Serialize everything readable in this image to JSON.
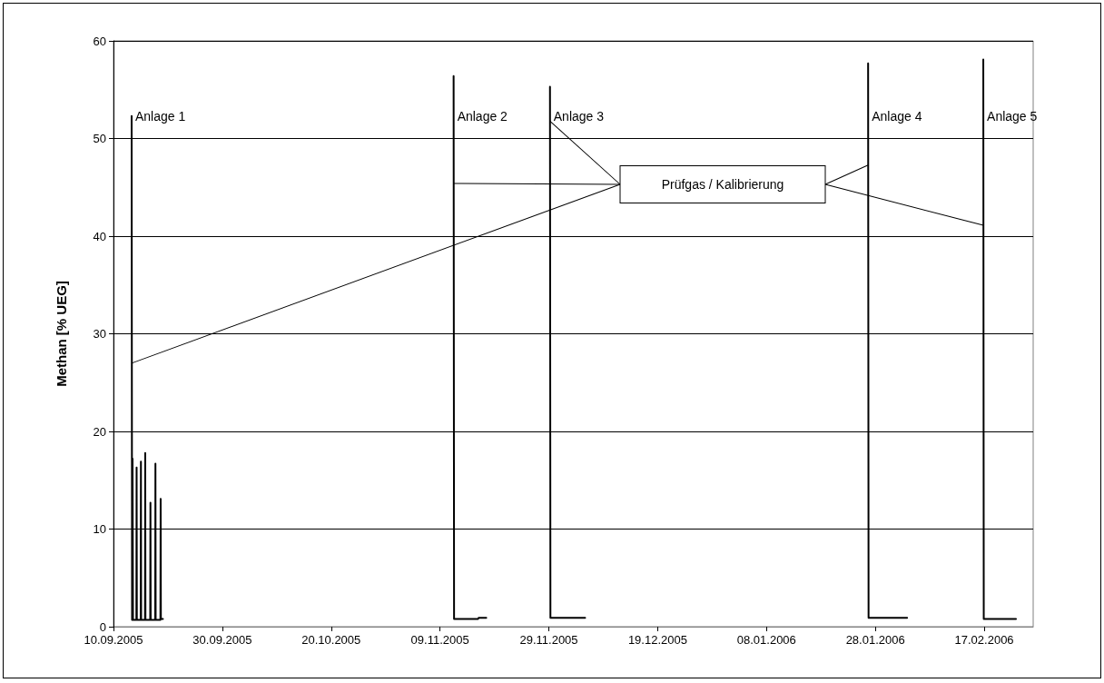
{
  "chart_data": {
    "type": "line",
    "ylabel": "Methan [% UEG]",
    "color": "#000000",
    "marker": "none",
    "line_style": "solid",
    "grid": "y",
    "xlim": [
      "2005-09-10",
      "2006-02-26"
    ],
    "xticks": [
      {
        "value": "2005-09-10",
        "label": "10.09.2005"
      },
      {
        "value": "2005-09-30",
        "label": "30.09.2005"
      },
      {
        "value": "2005-10-20",
        "label": "20.10.2005"
      },
      {
        "value": "2005-11-09",
        "label": "09.11.2005"
      },
      {
        "value": "2005-11-29",
        "label": "29.11.2005"
      },
      {
        "value": "2005-12-19",
        "label": "19.12.2005"
      },
      {
        "value": "2006-01-08",
        "label": "08.01.2006"
      },
      {
        "value": "2006-01-28",
        "label": "28.01.2006"
      },
      {
        "value": "2006-02-17",
        "label": "17.02.2006"
      }
    ],
    "ylim": [
      0,
      60
    ],
    "yticks": [
      0,
      10,
      20,
      30,
      40,
      50,
      60
    ],
    "x": [
      "2005-09-13T08:00",
      "2005-09-13T10:00",
      "2005-09-13T12:00",
      "2005-09-13T14:00",
      "2005-09-14T05:00",
      "2005-09-14T06:00",
      "2005-09-14T07:00",
      "2005-09-15T00:00",
      "2005-09-15T01:00",
      "2005-09-15T02:00",
      "2005-09-15T19:00",
      "2005-09-15T20:00",
      "2005-09-15T21:00",
      "2005-09-16T18:00",
      "2005-09-16T19:00",
      "2005-09-16T20:00",
      "2005-09-17T16:00",
      "2005-09-17T17:00",
      "2005-09-17T18:00",
      "2005-09-18T15:00",
      "2005-09-18T16:00",
      "2005-09-18T17:00",
      "2005-09-19T02:00",
      "2005-10-20T00:00",
      "2005-11-11T12:00",
      "2005-11-11T14:00",
      "2005-11-16T00:00",
      "2005-11-16T02:00",
      "2005-11-17T12:00",
      "2005-11-23T00:00",
      "2005-11-29T05:00",
      "2005-11-29T07:00",
      "2005-12-05T16:00",
      "2006-01-01T00:00",
      "2006-01-26T16:00",
      "2006-01-26T18:00",
      "2006-02-02T20:00",
      "2006-02-10T00:00",
      "2006-02-16T20:00",
      "2006-02-16T22:00",
      "2006-02-22T20:00"
    ],
    "values": [
      52.3,
      0.7,
      17.2,
      0.7,
      0.7,
      16.3,
      0.7,
      0.7,
      16.9,
      0.7,
      0.7,
      17.8,
      0.7,
      0.7,
      12.7,
      0.7,
      0.7,
      16.7,
      0.7,
      0.7,
      13.1,
      0.8,
      0.8,
      null,
      56.4,
      0.8,
      0.8,
      0.9,
      0.9,
      null,
      55.3,
      0.9,
      0.9,
      null,
      57.7,
      0.9,
      0.9,
      null,
      58.1,
      0.8,
      0.8
    ],
    "annotations": [
      {
        "text": "Anlage 1",
        "x": "2005-09-13T08:00",
        "y": 52.3
      },
      {
        "text": "Anlage 2",
        "x": "2005-11-11T12:00",
        "y": 52.3
      },
      {
        "text": "Anlage 3",
        "x": "2005-11-29T05:00",
        "y": 52.3
      },
      {
        "text": "Anlage 4",
        "x": "2006-01-26T16:00",
        "y": 52.3
      },
      {
        "text": "Anlage 5",
        "x": "2006-02-16T20:00",
        "y": 52.3
      },
      "Prüfgas / Kalibrierung"
    ]
  }
}
